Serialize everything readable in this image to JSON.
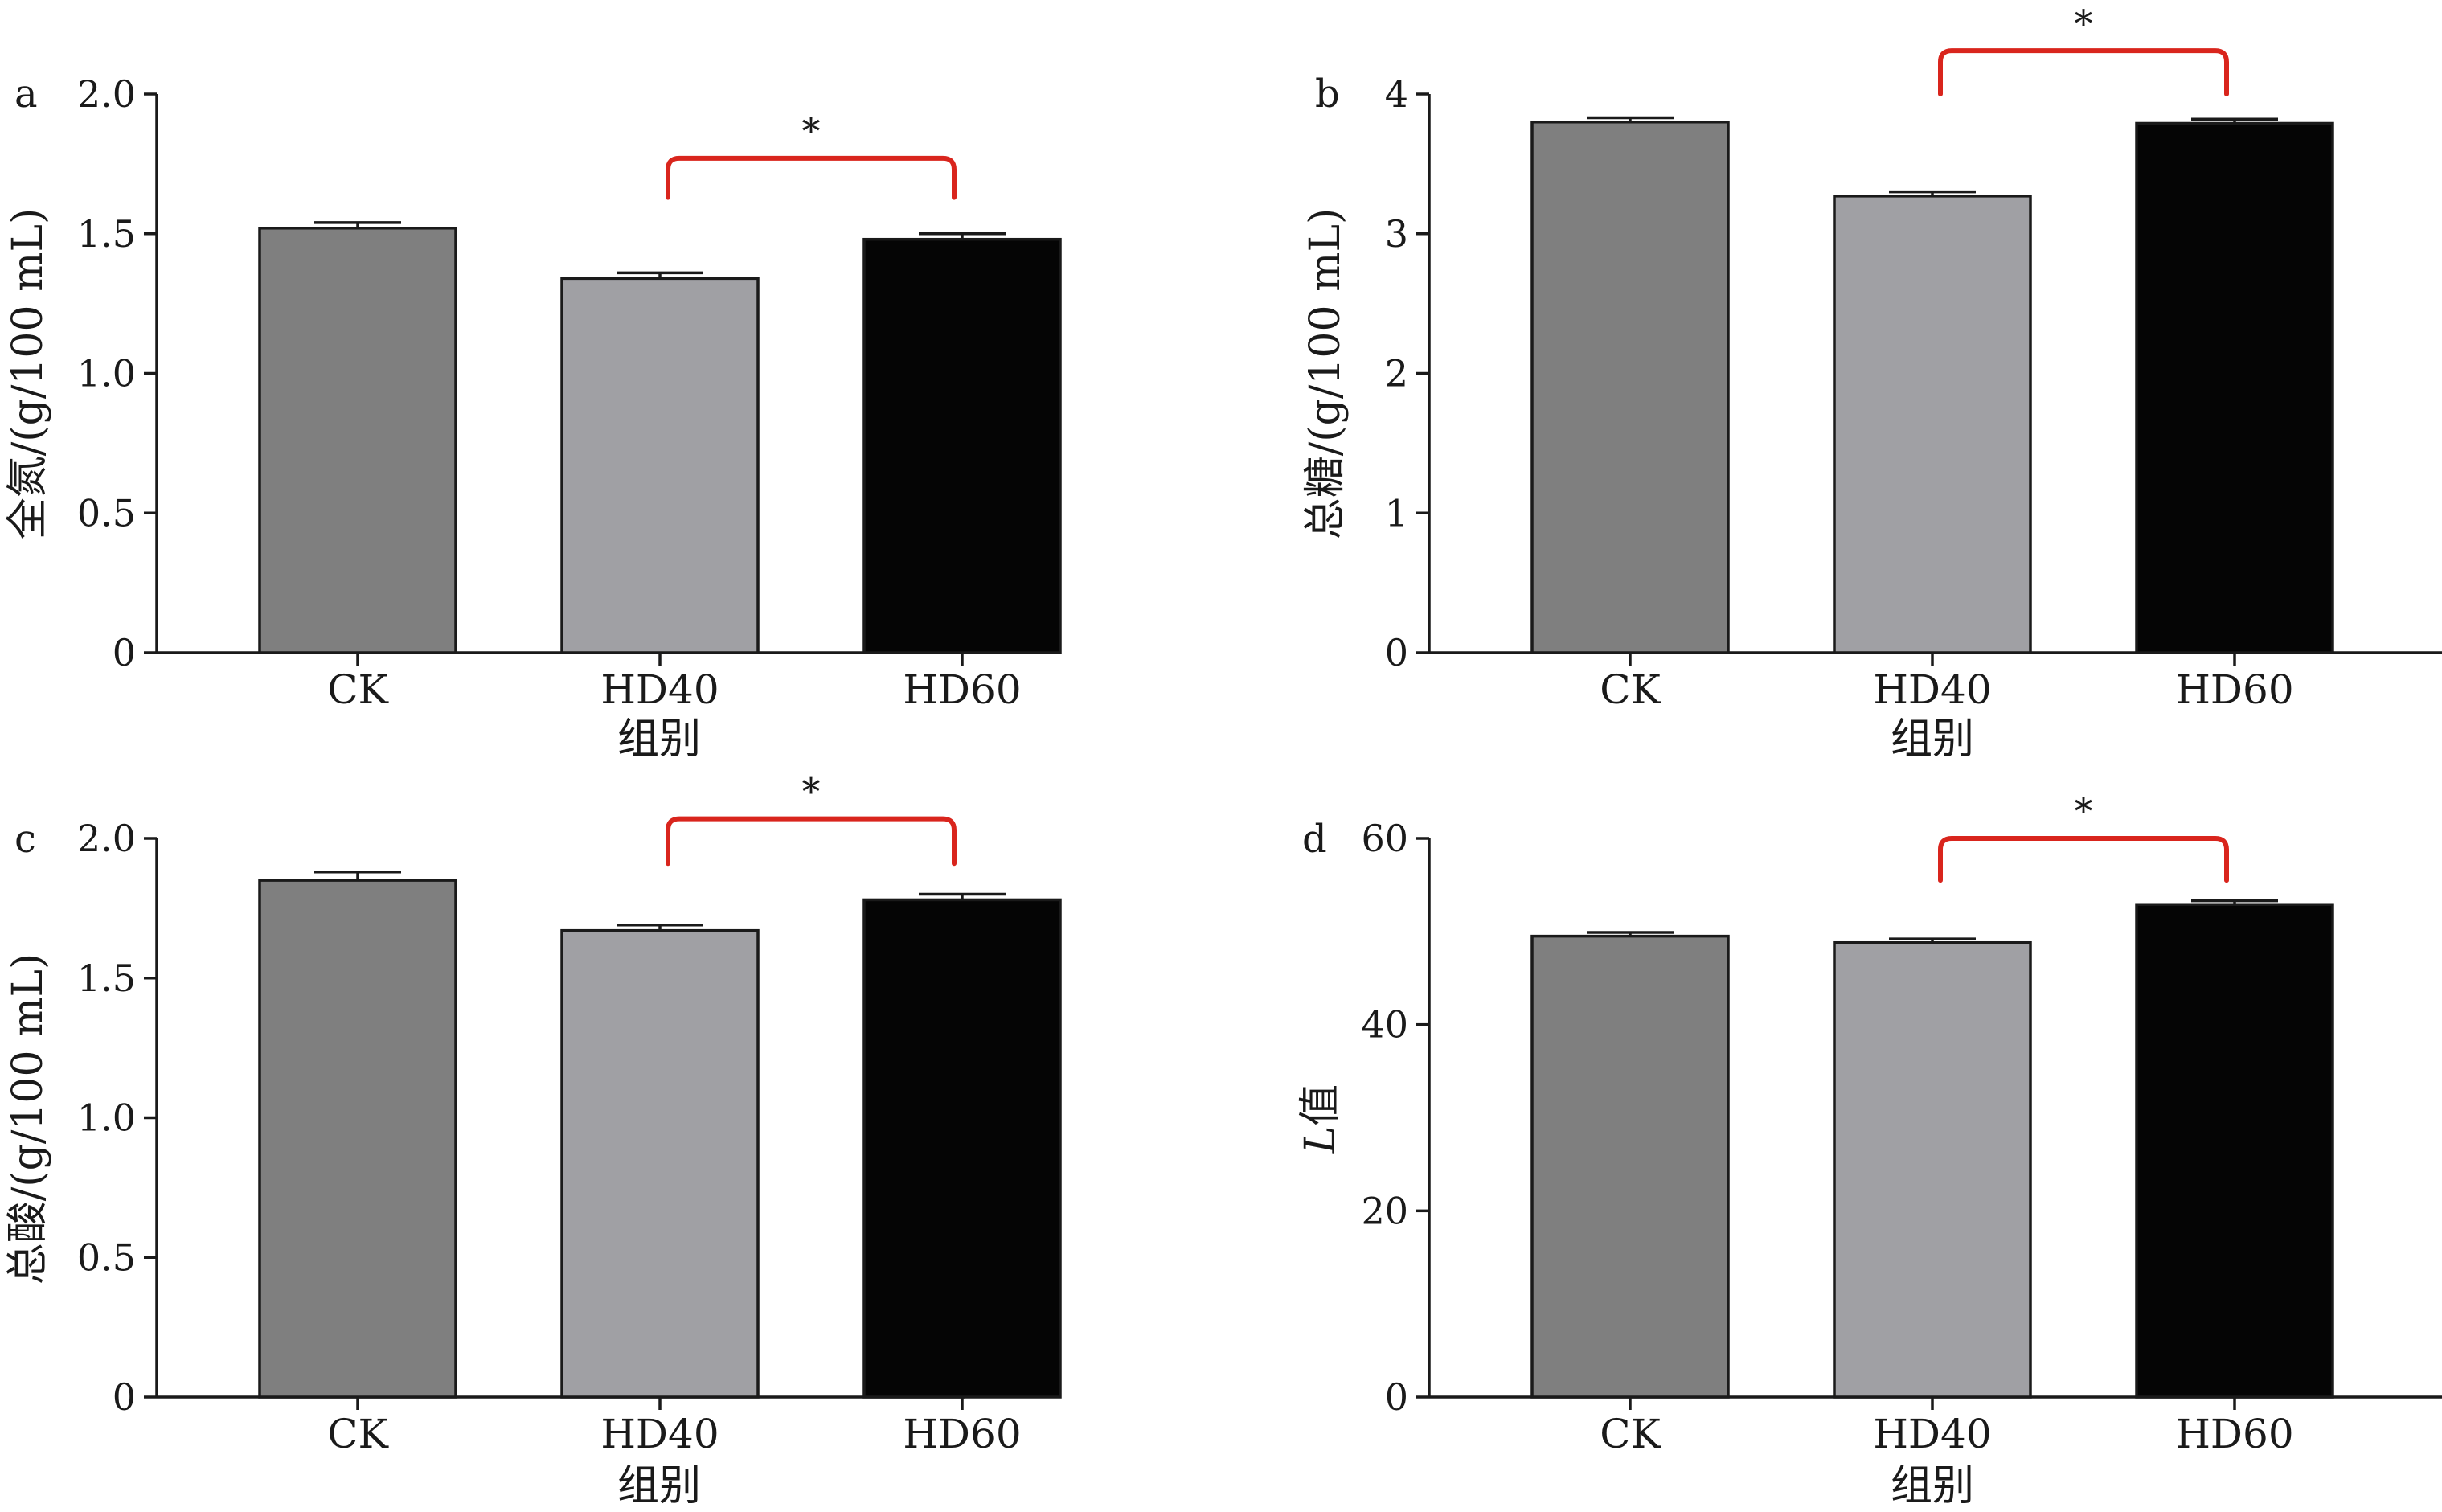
{
  "colors": {
    "ck": "#7f7f7f",
    "hd40": "#a0a0a4",
    "hd60": "#050505",
    "bracket": "#d9251d"
  },
  "chart_data": [
    {
      "type": "bar",
      "panel": "a",
      "categories": [
        "CK",
        "HD40",
        "HD60"
      ],
      "values": [
        1.52,
        1.34,
        1.48
      ],
      "errors": [
        0.02,
        0.02,
        0.02
      ],
      "ylabel": "全氮/(g/100 mL)",
      "xlabel": "组别",
      "ylim": [
        0,
        2.0
      ],
      "yticks": [
        0,
        0.5,
        1.0,
        1.5,
        2.0
      ],
      "ytick_labels": [
        "0",
        "0.5",
        "1.0",
        "1.5",
        "2.0"
      ],
      "significance": {
        "from": "HD40",
        "to": "HD60",
        "label": "*",
        "level": 1.77,
        "drop": 0.14
      }
    },
    {
      "type": "bar",
      "panel": "b",
      "categories": [
        "CK",
        "HD40",
        "HD60"
      ],
      "values": [
        3.8,
        3.27,
        3.79
      ],
      "errors": [
        0.03,
        0.03,
        0.03
      ],
      "ylabel": "总糖/(g/100 mL)",
      "xlabel": "组别",
      "ylim": [
        0,
        4
      ],
      "yticks": [
        0,
        1,
        2,
        3,
        4
      ],
      "ytick_labels": [
        "0",
        "1",
        "2",
        "3",
        "4"
      ],
      "significance": {
        "from": "HD40",
        "to": "HD60",
        "label": "*",
        "level": 4.31,
        "drop": 0.31
      }
    },
    {
      "type": "bar",
      "panel": "c",
      "categories": [
        "CK",
        "HD40",
        "HD60"
      ],
      "values": [
        1.85,
        1.67,
        1.78
      ],
      "errors": [
        0.03,
        0.02,
        0.02
      ],
      "ylabel": "总酸/(g/100 mL)",
      "xlabel": "组别",
      "ylim": [
        0,
        2.0
      ],
      "yticks": [
        0,
        0.5,
        1.0,
        1.5,
        2.0
      ],
      "ytick_labels": [
        "0",
        "0.5",
        "1.0",
        "1.5",
        "2.0"
      ],
      "significance": {
        "from": "HD40",
        "to": "HD60",
        "label": "*",
        "level": 2.07,
        "drop": 0.16
      }
    },
    {
      "type": "bar",
      "panel": "d",
      "categories": [
        "CK",
        "HD40",
        "HD60"
      ],
      "values": [
        49.5,
        48.8,
        52.9
      ],
      "errors": [
        0.4,
        0.4,
        0.4
      ],
      "ylabel": "L值",
      "ylabel_italic": "L",
      "ylabel_rest": "值",
      "xlabel": "组别",
      "ylim": [
        0,
        60
      ],
      "yticks": [
        0,
        20,
        40,
        60
      ],
      "ytick_labels": [
        "0",
        "20",
        "40",
        "60"
      ],
      "significance": {
        "from": "HD40",
        "to": "HD60",
        "label": "*",
        "level": 60.0,
        "drop": 4.5
      }
    }
  ]
}
